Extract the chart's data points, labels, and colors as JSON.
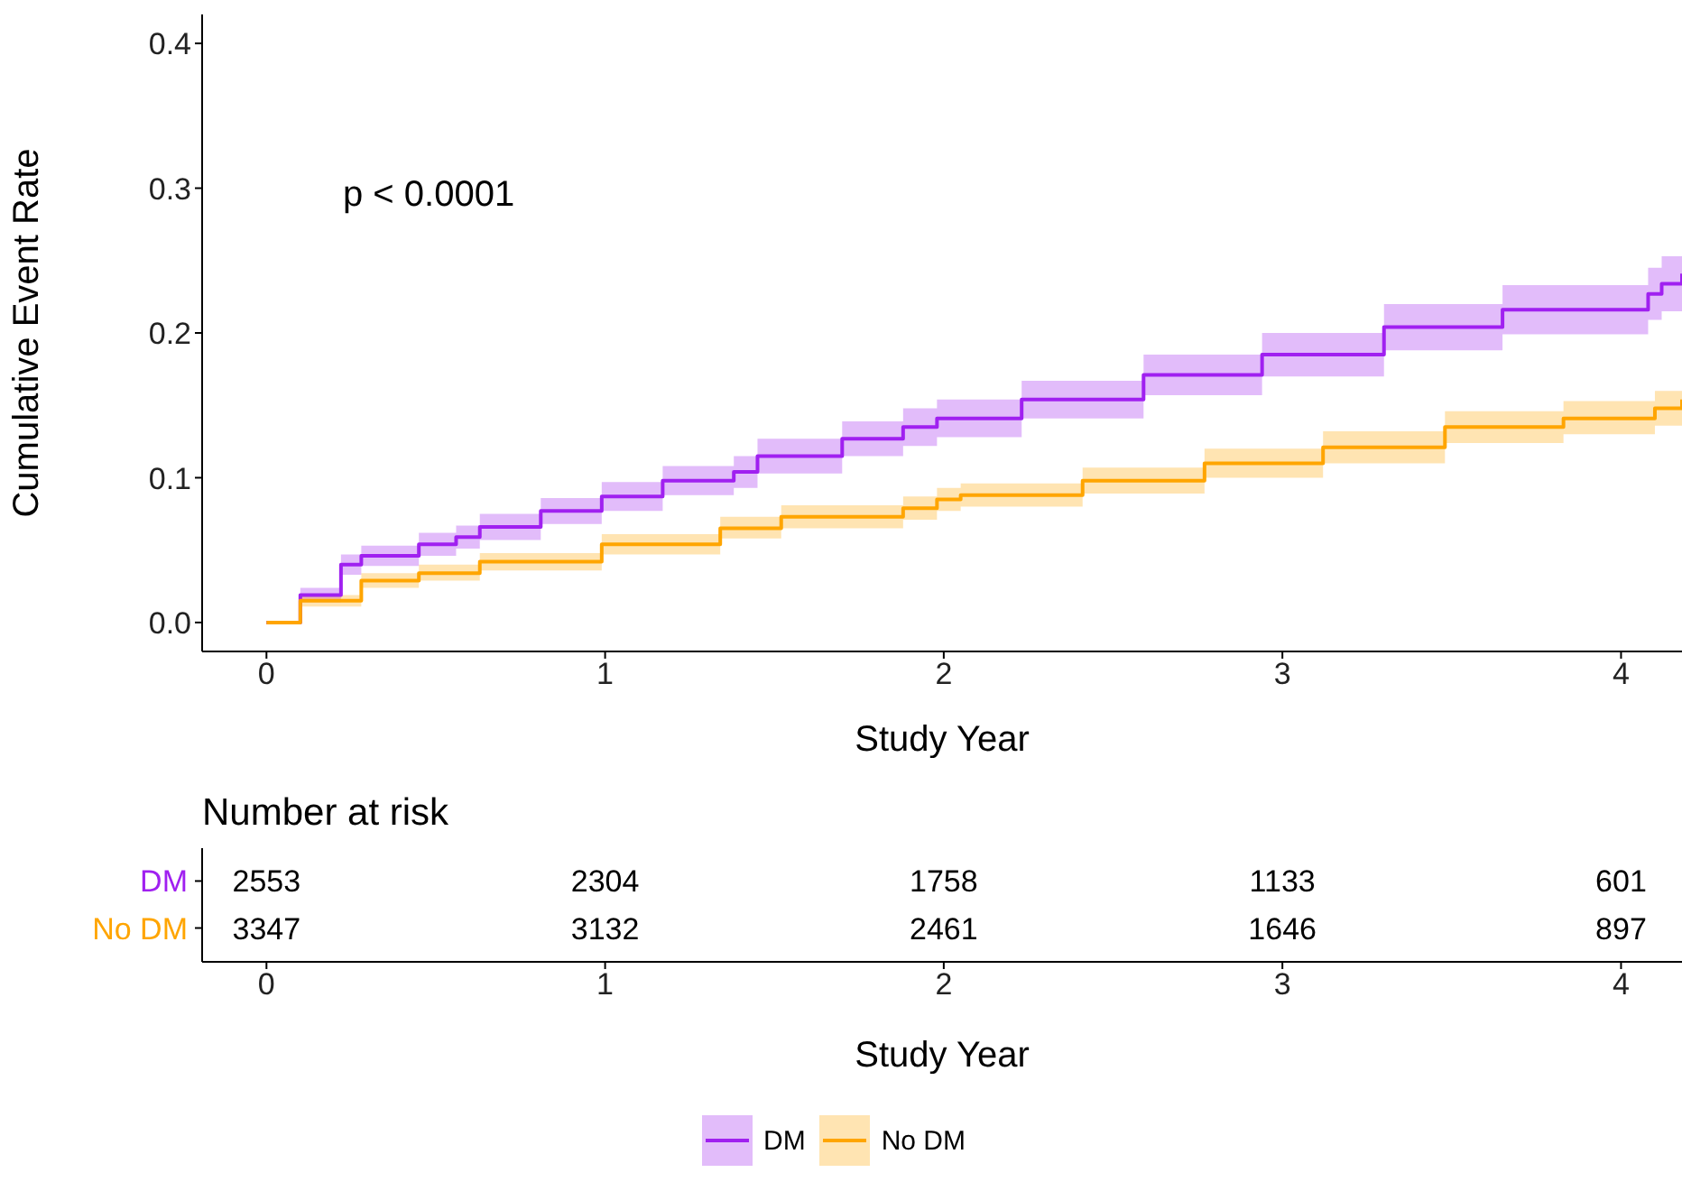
{
  "chart_data": [
    {
      "type": "step",
      "ylabel": "Cumulative Event Rate",
      "xlabel": "Study Year",
      "xlim": [
        -0.19,
        4.18
      ],
      "xticks": [
        0,
        1,
        2,
        3,
        4
      ],
      "ylim": [
        -0.02,
        0.42
      ],
      "yticks": [
        {
          "value": 0,
          "label": "0.0"
        },
        {
          "value": 0.1,
          "label": "0.1"
        },
        {
          "value": 0.2,
          "label": "0.2"
        },
        {
          "value": 0.3,
          "label": "0.3"
        },
        {
          "value": 0.4,
          "label": "0.4"
        }
      ],
      "grid": false,
      "legend": "bottom",
      "annotations": [
        "p < 0.0001"
      ],
      "series": [
        {
          "name": "DM",
          "color": "#a020f0",
          "x": [
            0,
            0.1,
            0.22,
            0.28,
            0.45,
            0.56,
            0.63,
            0.81,
            0.99,
            1.17,
            1.38,
            1.45,
            1.7,
            1.88,
            1.98,
            2.23,
            2.59,
            2.94,
            3.3,
            3.65,
            4.08,
            4.12,
            4.18
          ],
          "values": [
            0,
            0.019,
            0.04,
            0.046,
            0.054,
            0.059,
            0.066,
            0.077,
            0.087,
            0.098,
            0.104,
            0.115,
            0.127,
            0.135,
            0.141,
            0.154,
            0.171,
            0.185,
            0.204,
            0.216,
            0.227,
            0.234,
            0.241
          ],
          "lower": [
            0,
            0.014,
            0.033,
            0.039,
            0.046,
            0.051,
            0.057,
            0.068,
            0.077,
            0.088,
            0.093,
            0.103,
            0.115,
            0.122,
            0.128,
            0.141,
            0.157,
            0.17,
            0.188,
            0.199,
            0.209,
            0.215,
            0.222
          ],
          "upper": [
            0,
            0.024,
            0.047,
            0.053,
            0.062,
            0.067,
            0.075,
            0.086,
            0.097,
            0.108,
            0.115,
            0.127,
            0.139,
            0.148,
            0.154,
            0.167,
            0.185,
            0.2,
            0.22,
            0.233,
            0.245,
            0.253,
            0.26
          ]
        },
        {
          "name": "No DM",
          "color": "#ffa500",
          "x": [
            0,
            0.1,
            0.28,
            0.45,
            0.63,
            0.99,
            1.34,
            1.52,
            1.88,
            1.98,
            2.05,
            2.41,
            2.77,
            3.12,
            3.48,
            3.83,
            4.1,
            4.18
          ],
          "values": [
            0,
            0.015,
            0.029,
            0.034,
            0.042,
            0.054,
            0.065,
            0.073,
            0.079,
            0.085,
            0.088,
            0.098,
            0.11,
            0.121,
            0.135,
            0.141,
            0.148,
            0.154
          ],
          "lower": [
            0,
            0.011,
            0.024,
            0.029,
            0.036,
            0.047,
            0.058,
            0.065,
            0.071,
            0.077,
            0.08,
            0.089,
            0.1,
            0.11,
            0.124,
            0.13,
            0.136,
            0.142
          ],
          "upper": [
            0,
            0.019,
            0.034,
            0.04,
            0.048,
            0.061,
            0.073,
            0.081,
            0.087,
            0.093,
            0.096,
            0.107,
            0.12,
            0.132,
            0.146,
            0.153,
            0.16,
            0.166
          ]
        }
      ]
    },
    {
      "type": "heatmap",
      "title": "Number at risk",
      "xlabel": "Study Year",
      "categories": [
        "0",
        "1",
        "2",
        "3",
        "4"
      ],
      "y_categories": [
        "DM",
        "No DM"
      ],
      "data_labels": true,
      "cells": [
        [
          2553,
          2304,
          1758,
          1133,
          601
        ],
        [
          3347,
          3132,
          2461,
          1646,
          897
        ]
      ]
    }
  ]
}
